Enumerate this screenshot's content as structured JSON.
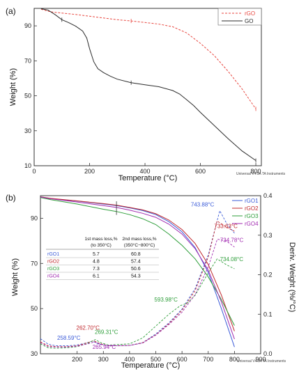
{
  "chart_data": [
    {
      "type": "line",
      "panel_label": "(a)",
      "xlabel": "Temperature (°C)",
      "ylabel": "Weight (%)",
      "xlim": [
        0,
        820
      ],
      "ylim": [
        10,
        100
      ],
      "xticks": [
        0,
        200,
        400,
        600,
        800
      ],
      "yticks": [
        10,
        30,
        50,
        70,
        90
      ],
      "footer": "Universal V4.5A TA Instruments",
      "legend_position": "top-right",
      "series": [
        {
          "name": "rGO",
          "color": "#e8463f",
          "style": "dashed",
          "x": [
            25,
            60,
            100,
            150,
            200,
            250,
            300,
            350,
            400,
            450,
            500,
            550,
            600,
            650,
            700,
            750,
            800
          ],
          "y": [
            99.5,
            98,
            97.3,
            96.5,
            95.5,
            94.5,
            93.5,
            92.8,
            91.9,
            91.0,
            89.5,
            86.0,
            80.0,
            73.0,
            64.0,
            54.0,
            42.5
          ]
        },
        {
          "name": "GO",
          "color": "#2b2b2b",
          "style": "solid",
          "x": [
            25,
            50,
            75,
            100,
            125,
            150,
            175,
            190,
            200,
            215,
            230,
            250,
            275,
            300,
            350,
            400,
            450,
            500,
            525,
            550,
            575,
            600,
            650,
            700,
            750,
            800
          ],
          "y": [
            99.8,
            99.0,
            96.5,
            93.5,
            91.8,
            89.8,
            87.0,
            83.0,
            77.0,
            69.5,
            65.5,
            63.3,
            61.2,
            59.5,
            57.5,
            56.3,
            55.2,
            53.0,
            51.0,
            47.8,
            44.5,
            40.5,
            33.0,
            25.5,
            18.5,
            13.0
          ]
        }
      ]
    },
    {
      "type": "line",
      "panel_label": "(b)",
      "xlabel": "Temperature (°C)",
      "ylabel": "Weight (%)",
      "y2label": "Deriv. Weight (%/°C)",
      "xlim": [
        60,
        900
      ],
      "ylim": [
        30,
        100
      ],
      "y2lim": [
        0.0,
        0.4
      ],
      "xticks": [
        200,
        300,
        400,
        500,
        600,
        700,
        800,
        900
      ],
      "yticks": [
        30,
        50,
        70,
        90
      ],
      "y2ticks": [
        0.0,
        0.1,
        0.2,
        0.3,
        0.4
      ],
      "footer": "Universal V4.5A TA Instruments",
      "legend_position": "top-right",
      "series": [
        {
          "name": "rGO1",
          "color": "#3b5bd8",
          "weight": {
            "x": [
              60,
              100,
              200,
              300,
              350,
              400,
              450,
              500,
              550,
              600,
              650,
              700,
              750,
              800
            ],
            "y": [
              99.5,
              98.7,
              97.6,
              96.3,
              95.6,
              94.6,
              93.4,
              91.6,
              88.5,
              84.0,
              77.0,
              66.0,
              50.0,
              33.0
            ]
          },
          "deriv": {
            "x": [
              60,
              90,
              120,
              160,
              200,
              240,
              258.59,
              280,
              320,
              400,
              450,
              500,
              550,
              600,
              650,
              700,
              743.88,
              770,
              800
            ],
            "y": [
              0.038,
              0.024,
              0.02,
              0.02,
              0.022,
              0.028,
              0.032,
              0.025,
              0.02,
              0.021,
              0.028,
              0.05,
              0.078,
              0.113,
              0.165,
              0.25,
              0.362,
              0.33,
              0.305
            ]
          }
        },
        {
          "name": "rGO2",
          "color": "#c0282d",
          "weight": {
            "x": [
              60,
              100,
              200,
              300,
              350,
              400,
              450,
              500,
              550,
              600,
              650,
              700,
              750,
              800
            ],
            "y": [
              99.5,
              98.8,
              97.7,
              96.5,
              95.8,
              94.8,
              93.7,
              92.0,
              89.2,
              85.0,
              78.8,
              69.5,
              56.0,
              40.0
            ]
          },
          "deriv": {
            "x": [
              60,
              90,
              120,
              160,
              200,
              240,
              262.7,
              285,
              320,
              400,
              450,
              500,
              550,
              600,
              650,
              700,
              733.63,
              770,
              800
            ],
            "y": [
              0.03,
              0.02,
              0.018,
              0.018,
              0.02,
              0.028,
              0.033,
              0.026,
              0.02,
              0.021,
              0.028,
              0.048,
              0.076,
              0.11,
              0.16,
              0.245,
              0.336,
              0.32,
              0.31
            ]
          }
        },
        {
          "name": "rGO3",
          "color": "#2e9e3a",
          "weight": {
            "x": [
              60,
              100,
              200,
              300,
              350,
              400,
              450,
              500,
              550,
              600,
              650,
              700,
              750,
              800
            ],
            "y": [
              99.2,
              98.2,
              96.3,
              94.0,
              93.0,
              91.6,
              89.8,
              87.2,
              83.0,
              78.0,
              72.0,
              64.0,
              54.0,
              42.5
            ]
          },
          "deriv": {
            "x": [
              60,
              90,
              120,
              160,
              200,
              240,
              269.31,
              290,
              320,
              400,
              450,
              500,
              550,
              593.98,
              620,
              650,
              700,
              734.08,
              770,
              800
            ],
            "y": [
              0.025,
              0.015,
              0.014,
              0.015,
              0.018,
              0.026,
              0.036,
              0.028,
              0.022,
              0.025,
              0.04,
              0.07,
              0.1,
              0.122,
              0.128,
              0.148,
              0.205,
              0.24,
              0.225,
              0.215
            ]
          }
        },
        {
          "name": "rGO4",
          "color": "#a12ab0",
          "weight": {
            "x": [
              60,
              100,
              200,
              300,
              350,
              400,
              450,
              500,
              550,
              600,
              650,
              700,
              750,
              800
            ],
            "y": [
              99.4,
              98.6,
              97.2,
              95.6,
              94.8,
              93.6,
              92.2,
              90.4,
              87.4,
              83.0,
              76.5,
              67.0,
              53.0,
              36.5
            ]
          },
          "deriv": {
            "x": [
              60,
              90,
              120,
              160,
              200,
              240,
              265.94,
              290,
              320,
              400,
              450,
              500,
              550,
              600,
              650,
              700,
              734.78,
              770,
              800
            ],
            "y": [
              0.028,
              0.018,
              0.017,
              0.017,
              0.019,
              0.025,
              0.03,
              0.024,
              0.02,
              0.021,
              0.027,
              0.047,
              0.074,
              0.105,
              0.15,
              0.22,
              0.29,
              0.285,
              0.27
            ]
          }
        }
      ],
      "peak_labels": [
        {
          "text": "743.88°C",
          "color": "#3b5bd8",
          "x": 743.88,
          "y2": 0.362
        },
        {
          "text": "733.63°C",
          "color": "#c0282d",
          "x": 733.63,
          "y2": 0.336
        },
        {
          "text": "734.78°C",
          "color": "#a12ab0",
          "x": 734.78,
          "y2": 0.29
        },
        {
          "text": "734.08°C",
          "color": "#2e9e3a",
          "x": 734.08,
          "y2": 0.24
        },
        {
          "text": "593.98°C",
          "color": "#2e9e3a",
          "x": 593.98,
          "y2": 0.122
        },
        {
          "text": "262.70°C",
          "color": "#c0282d",
          "x": 262.7,
          "y2": 0.033
        },
        {
          "text": "269.31°C",
          "color": "#2e9e3a",
          "x": 269.31,
          "y2": 0.036
        },
        {
          "text": "258.59°C",
          "color": "#3b5bd8",
          "x": 258.59,
          "y2": 0.032
        },
        {
          "text": "265.94°C",
          "color": "#a12ab0",
          "x": 265.94,
          "y2": 0.03
        }
      ],
      "table": {
        "headers": [
          "",
          "1st mass loss,%",
          "2nd mass loss,%"
        ],
        "subheaders": [
          "",
          "(to 350°C)",
          "(350°C−800°C)"
        ],
        "rows": [
          {
            "name": "rGO1",
            "color": "#3b5bd8",
            "v1": "5.7",
            "v2": "60.8"
          },
          {
            "name": "rGO2",
            "color": "#c0282d",
            "v1": "4.8",
            "v2": "57.4"
          },
          {
            "name": "rGO3",
            "color": "#2e9e3a",
            "v1": "7.3",
            "v2": "50.6"
          },
          {
            "name": "rGO4",
            "color": "#a12ab0",
            "v1": "6.1",
            "v2": "54.3"
          }
        ]
      }
    }
  ]
}
